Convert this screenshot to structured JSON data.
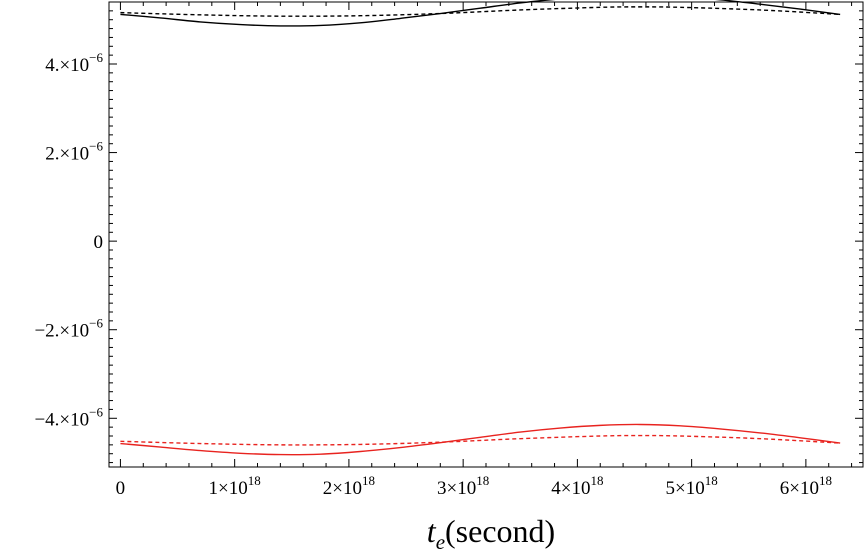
{
  "chart_data": {
    "type": "line",
    "xlabel": {
      "main": "t",
      "sub": "e",
      "rest": "(second)"
    },
    "ylabel": "",
    "xlim": [
      -1e+17,
      6.5e+18
    ],
    "ylim": [
      -5.1e-06,
      5.4e-06
    ],
    "x_ticks": [
      {
        "value": 0,
        "mant": "0",
        "exp": ""
      },
      {
        "value": 1e+18,
        "mant": "1×10",
        "exp": "18"
      },
      {
        "value": 2e+18,
        "mant": "2×10",
        "exp": "18"
      },
      {
        "value": 3e+18,
        "mant": "3×10",
        "exp": "18"
      },
      {
        "value": 4e+18,
        "mant": "4×10",
        "exp": "18"
      },
      {
        "value": 5e+18,
        "mant": "5×10",
        "exp": "18"
      },
      {
        "value": 6e+18,
        "mant": "6×10",
        "exp": "18"
      }
    ],
    "y_ticks": [
      {
        "value": -4e-06,
        "mant": "−4.×10",
        "exp": "−6"
      },
      {
        "value": -2e-06,
        "mant": "−2.×10",
        "exp": "−6"
      },
      {
        "value": 0,
        "mant": "0",
        "exp": ""
      },
      {
        "value": 2e-06,
        "mant": "2.×10",
        "exp": "−6"
      },
      {
        "value": 4e-06,
        "mant": "4.×10",
        "exp": "−6"
      }
    ],
    "series": [
      {
        "color": "#000000",
        "style": "solid",
        "x": [
          0,
          3.5e+17,
          7e+17,
          1.05e+18,
          1.4e+18,
          1.75e+18,
          2.1e+18,
          2.45e+18,
          2.8e+18,
          3.15e+18,
          3.5e+18,
          3.85e+18,
          4.2e+18,
          4.55e+18,
          4.9e+18,
          5.25e+18,
          5.6e+18,
          5.95e+18,
          6.3e+18
        ],
        "y": [
          5.12e-06,
          5.04e-06,
          4.95e-06,
          4.89e-06,
          4.86e-06,
          4.87e-06,
          4.93e-06,
          5.03e-06,
          5.14e-06,
          5.26e-06,
          5.38e-06,
          5.47e-06,
          5.53e-06,
          5.55e-06,
          5.52e-06,
          5.45e-06,
          5.35e-06,
          5.24e-06,
          5.12e-06
        ]
      },
      {
        "color": "#000000",
        "style": "dashed",
        "x": [
          0,
          7e+17,
          1.4e+18,
          2.1e+18,
          2.8e+18,
          3.5e+18,
          4.2e+18,
          4.55e+18,
          4.9e+18,
          5.6e+18,
          6.3e+18
        ],
        "y": [
          5.16e-06,
          5.11e-06,
          5.08e-06,
          5.09e-06,
          5.14e-06,
          5.22e-06,
          5.28e-06,
          5.29e-06,
          5.28e-06,
          5.22e-06,
          5.12e-06
        ]
      },
      {
        "color": "#e8231f",
        "style": "solid",
        "x": [
          0,
          3.5e+17,
          7e+17,
          1.05e+18,
          1.4e+18,
          1.75e+18,
          2.1e+18,
          2.45e+18,
          2.8e+18,
          3.15e+18,
          3.5e+18,
          3.85e+18,
          4.2e+18,
          4.55e+18,
          4.9e+18,
          5.25e+18,
          5.6e+18,
          5.95e+18,
          6.3e+18
        ],
        "y": [
          -4.57e-06,
          -4.65e-06,
          -4.73e-06,
          -4.79e-06,
          -4.82e-06,
          -4.81e-06,
          -4.75e-06,
          -4.66e-06,
          -4.55e-06,
          -4.43e-06,
          -4.31e-06,
          -4.22e-06,
          -4.16e-06,
          -4.14e-06,
          -4.17e-06,
          -4.24e-06,
          -4.33e-06,
          -4.44e-06,
          -4.56e-06
        ]
      },
      {
        "color": "#e8231f",
        "style": "dashed",
        "x": [
          0,
          7e+17,
          1.4e+18,
          2.1e+18,
          2.8e+18,
          3.5e+18,
          4.2e+18,
          4.55e+18,
          4.9e+18,
          5.6e+18,
          6.3e+18
        ],
        "y": [
          -4.52e-06,
          -4.57e-06,
          -4.6e-06,
          -4.59e-06,
          -4.54e-06,
          -4.46e-06,
          -4.4e-06,
          -4.39e-06,
          -4.4e-06,
          -4.46e-06,
          -4.56e-06
        ]
      }
    ]
  }
}
